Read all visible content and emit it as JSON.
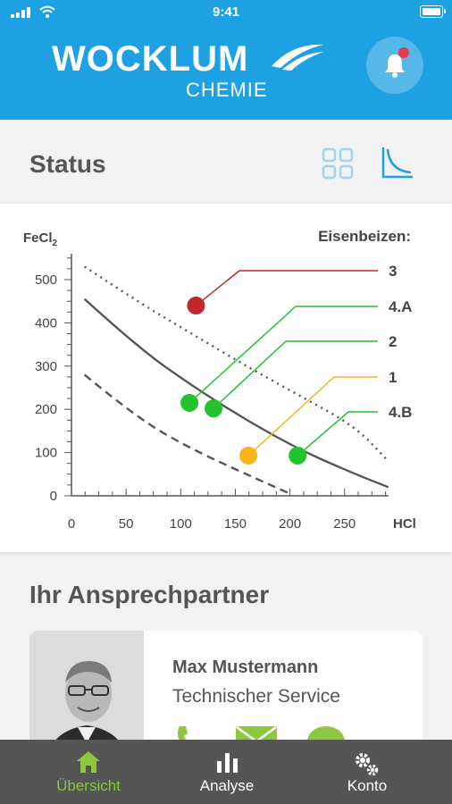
{
  "status_bar": {
    "time": "9:41"
  },
  "header": {
    "logo_main": "WOCKLUM",
    "logo_sub": "CHEMIE",
    "brand_color": "#1da1e2",
    "notification_icon": "bell-icon",
    "has_unread": true
  },
  "status": {
    "title": "Status",
    "view_icons": [
      "grid-view-icon",
      "chart-view-icon"
    ],
    "active_view": "chart"
  },
  "chart_data": {
    "type": "scatter",
    "ylabel_main": "FeCl",
    "ylabel_sub": "2",
    "xlabel": "HCl",
    "legend_title": "Eisenbeizen:",
    "xlim": [
      0,
      290
    ],
    "ylim": [
      0,
      560
    ],
    "x_ticks": [
      "0",
      "50",
      "100",
      "150",
      "200",
      "250"
    ],
    "y_ticks": [
      "0",
      "100",
      "200",
      "300",
      "400",
      "500"
    ],
    "curves": [
      {
        "style": "dotted",
        "points": [
          [
            12,
            530
          ],
          [
            60,
            450
          ],
          [
            110,
            375
          ],
          [
            160,
            300
          ],
          [
            210,
            230
          ],
          [
            260,
            160
          ],
          [
            290,
            80
          ]
        ]
      },
      {
        "style": "solid",
        "points": [
          [
            12,
            455
          ],
          [
            60,
            345
          ],
          [
            110,
            255
          ],
          [
            160,
            175
          ],
          [
            210,
            105
          ],
          [
            260,
            50
          ],
          [
            290,
            20
          ]
        ]
      },
      {
        "style": "dashed",
        "points": [
          [
            12,
            280
          ],
          [
            60,
            180
          ],
          [
            110,
            108
          ],
          [
            160,
            50
          ],
          [
            200,
            5
          ]
        ]
      }
    ],
    "points": [
      {
        "label": "3",
        "x": 114,
        "y": 440,
        "color": "#c1272d"
      },
      {
        "label": "4.A",
        "x": 108,
        "y": 215,
        "color": "#22c32f"
      },
      {
        "label": "2",
        "x": 130,
        "y": 202,
        "color": "#22c32f"
      },
      {
        "label": "1",
        "x": 162,
        "y": 93,
        "color": "#f7b519"
      },
      {
        "label": "4.B",
        "x": 207,
        "y": 93,
        "color": "#22c32f"
      }
    ]
  },
  "contact": {
    "title": "Ihr Ansprechpartner",
    "name": "Max Mustermann",
    "role": "Technischer Service",
    "actions": [
      "phone-icon",
      "mail-icon",
      "chat-icon"
    ],
    "action_color": "#8dc63f"
  },
  "tabbar": {
    "tabs": [
      {
        "label": "Übersicht",
        "icon": "home-icon",
        "active": true
      },
      {
        "label": "Analyse",
        "icon": "bar-chart-icon",
        "active": false
      },
      {
        "label": "Konto",
        "icon": "gears-icon",
        "active": false
      }
    ],
    "active_color": "#8dc63f"
  }
}
